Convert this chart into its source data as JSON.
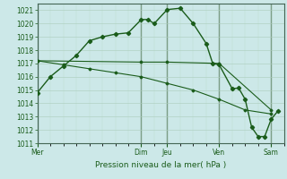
{
  "xlabel": "Pression niveau de la mer( hPa )",
  "bg_color": "#cce8e8",
  "plot_bg_color": "#cce8e8",
  "grid_major_color": "#aaccbb",
  "grid_minor_color": "#bbddcc",
  "line_color": "#1a5c1a",
  "ylim": [
    1011,
    1021.5
  ],
  "yticks": [
    1011,
    1012,
    1013,
    1014,
    1015,
    1016,
    1017,
    1018,
    1019,
    1020,
    1021
  ],
  "day_labels": [
    "Mer",
    "Dim",
    "Jeu",
    "Ven",
    "Sam"
  ],
  "day_positions": [
    0,
    16,
    20,
    28,
    36
  ],
  "xlim": [
    0,
    38
  ],
  "line1_x": [
    0,
    2,
    4,
    6,
    8,
    10,
    12,
    14,
    16,
    17,
    18,
    20,
    22,
    24,
    26,
    27,
    28,
    30,
    31,
    32,
    33,
    34,
    35,
    36,
    37
  ],
  "line1_y": [
    1014.8,
    1016.0,
    1016.8,
    1017.6,
    1018.7,
    1019.0,
    1019.2,
    1019.3,
    1020.3,
    1020.3,
    1020.0,
    1021.05,
    1021.15,
    1020.0,
    1018.5,
    1017.0,
    1016.9,
    1015.1,
    1015.15,
    1014.3,
    1012.2,
    1011.5,
    1011.5,
    1012.8,
    1013.4
  ],
  "line2_x": [
    0,
    16,
    20,
    28,
    36
  ],
  "line2_y": [
    1017.2,
    1017.1,
    1017.1,
    1017.0,
    1013.5
  ],
  "line3_x": [
    0,
    4,
    8,
    12,
    16,
    20,
    24,
    28,
    32,
    36
  ],
  "line3_y": [
    1017.2,
    1016.9,
    1016.6,
    1016.3,
    1016.0,
    1015.5,
    1015.0,
    1014.3,
    1013.5,
    1013.2
  ]
}
